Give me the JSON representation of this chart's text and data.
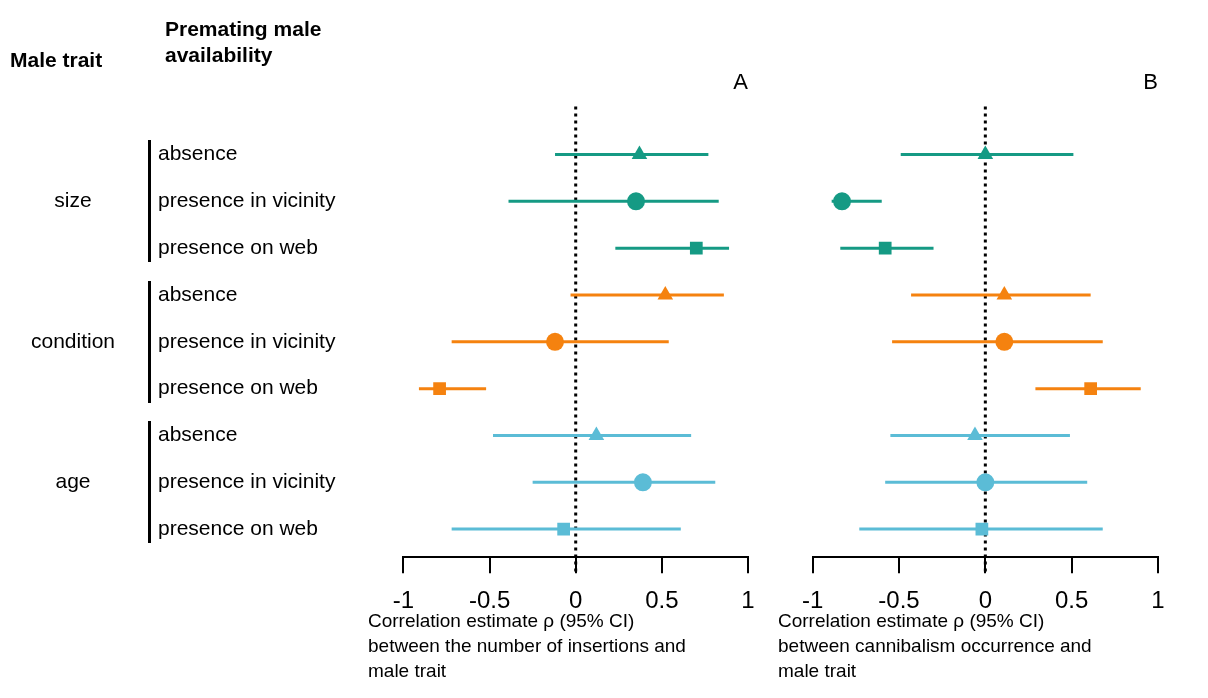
{
  "chart_data": [
    {
      "type": "scatter",
      "title": "A",
      "orientation": "horizontal",
      "ylabel": "Premating male availability",
      "xlabel": "Correlation estimate ρ (95% CI) between the number of insertions and male trait",
      "annotations": [
        "Male trait",
        "size",
        "condition",
        "age"
      ],
      "categories": [
        "absence",
        "presence in vicinity",
        "presence on web",
        "absence",
        "presence in vicinity",
        "presence on web",
        "absence",
        "presence in vicinity",
        "presence on web"
      ],
      "xlim": [
        -1,
        1
      ],
      "xticks": [
        -1,
        -0.5,
        0,
        0.5,
        1
      ],
      "ref_lines": [
        {
          "axis": "x",
          "value": 0,
          "color": "#000000",
          "line_style": "dotted"
        }
      ],
      "series": [
        {
          "marker": "triangle",
          "color": "#159a84",
          "values": [
            0.37,
            null,
            null,
            null,
            null,
            null,
            null,
            null,
            null
          ],
          "errors": [
            [
              -0.12,
              0.77
            ],
            null,
            null,
            null,
            null,
            null,
            null,
            null,
            null
          ]
        },
        {
          "marker": "circle",
          "color": "#159a84",
          "values": [
            null,
            0.35,
            null,
            null,
            null,
            null,
            null,
            null,
            null
          ],
          "errors": [
            null,
            [
              -0.39,
              0.83
            ],
            null,
            null,
            null,
            null,
            null,
            null,
            null
          ]
        },
        {
          "marker": "square",
          "color": "#159a84",
          "values": [
            null,
            null,
            0.7,
            null,
            null,
            null,
            null,
            null,
            null
          ],
          "errors": [
            null,
            null,
            [
              0.23,
              0.89
            ],
            null,
            null,
            null,
            null,
            null,
            null
          ]
        },
        {
          "marker": "triangle",
          "color": "#f5820f",
          "values": [
            null,
            null,
            null,
            0.52,
            null,
            null,
            null,
            null,
            null
          ],
          "errors": [
            null,
            null,
            null,
            [
              -0.03,
              0.86
            ],
            null,
            null,
            null,
            null,
            null
          ]
        },
        {
          "marker": "circle",
          "color": "#f5820f",
          "values": [
            null,
            null,
            null,
            null,
            -0.12,
            null,
            null,
            null,
            null
          ],
          "errors": [
            null,
            null,
            null,
            null,
            [
              -0.72,
              0.54
            ],
            null,
            null,
            null,
            null
          ]
        },
        {
          "marker": "square",
          "color": "#f5820f",
          "values": [
            null,
            null,
            null,
            null,
            null,
            -0.79,
            null,
            null,
            null
          ],
          "errors": [
            null,
            null,
            null,
            null,
            null,
            [
              -0.91,
              -0.52
            ],
            null,
            null,
            null
          ]
        },
        {
          "marker": "triangle",
          "color": "#5bbcd6",
          "values": [
            null,
            null,
            null,
            null,
            null,
            null,
            0.12,
            null,
            null
          ],
          "errors": [
            null,
            null,
            null,
            null,
            null,
            null,
            [
              -0.48,
              0.67
            ],
            null,
            null
          ]
        },
        {
          "marker": "circle",
          "color": "#5bbcd6",
          "values": [
            null,
            null,
            null,
            null,
            null,
            null,
            null,
            0.39,
            null
          ],
          "errors": [
            null,
            null,
            null,
            null,
            null,
            null,
            null,
            [
              -0.25,
              0.81
            ],
            null
          ]
        },
        {
          "marker": "square",
          "color": "#5bbcd6",
          "values": [
            null,
            null,
            null,
            null,
            null,
            null,
            null,
            null,
            -0.07
          ],
          "errors": [
            null,
            null,
            null,
            null,
            null,
            null,
            null,
            null,
            [
              -0.72,
              0.61
            ]
          ]
        }
      ]
    },
    {
      "type": "scatter",
      "title": "B",
      "orientation": "horizontal",
      "tick_labels": "x",
      "xlabel": "Correlation estimate ρ (95% CI) between cannibalism occurrence and male trait",
      "categories": [
        null,
        null,
        null,
        null,
        null,
        null,
        null,
        null,
        null
      ],
      "xlim": [
        -1,
        1
      ],
      "xticks": [
        -1,
        -0.5,
        0,
        0.5,
        1
      ],
      "ref_lines": [
        {
          "axis": "x",
          "value": 0,
          "color": "#000000",
          "line_style": "dotted"
        }
      ],
      "series": [
        {
          "marker": "triangle",
          "color": "#159a84",
          "values": [
            0.0,
            null,
            null,
            null,
            null,
            null,
            null,
            null,
            null
          ],
          "errors": [
            [
              -0.49,
              0.51
            ],
            null,
            null,
            null,
            null,
            null,
            null,
            null,
            null
          ]
        },
        {
          "marker": "circle",
          "color": "#159a84",
          "values": [
            null,
            -0.83,
            null,
            null,
            null,
            null,
            null,
            null,
            null
          ],
          "errors": [
            null,
            [
              -0.89,
              -0.6
            ],
            null,
            null,
            null,
            null,
            null,
            null,
            null
          ]
        },
        {
          "marker": "square",
          "color": "#159a84",
          "values": [
            null,
            null,
            -0.58,
            null,
            null,
            null,
            null,
            null,
            null
          ],
          "errors": [
            null,
            null,
            [
              -0.84,
              -0.3
            ],
            null,
            null,
            null,
            null,
            null,
            null
          ]
        },
        {
          "marker": "triangle",
          "color": "#f5820f",
          "values": [
            null,
            null,
            null,
            0.11,
            null,
            null,
            null,
            null,
            null
          ],
          "errors": [
            null,
            null,
            null,
            [
              -0.43,
              0.61
            ],
            null,
            null,
            null,
            null,
            null
          ]
        },
        {
          "marker": "circle",
          "color": "#f5820f",
          "values": [
            null,
            null,
            null,
            null,
            0.11,
            null,
            null,
            null,
            null
          ],
          "errors": [
            null,
            null,
            null,
            null,
            [
              -0.54,
              0.68
            ],
            null,
            null,
            null,
            null
          ]
        },
        {
          "marker": "square",
          "color": "#f5820f",
          "values": [
            null,
            null,
            null,
            null,
            null,
            0.61,
            null,
            null,
            null
          ],
          "errors": [
            null,
            null,
            null,
            null,
            null,
            [
              0.29,
              0.9
            ],
            null,
            null,
            null
          ]
        },
        {
          "marker": "triangle",
          "color": "#5bbcd6",
          "values": [
            null,
            null,
            null,
            null,
            null,
            null,
            -0.06,
            null,
            null
          ],
          "errors": [
            null,
            null,
            null,
            null,
            null,
            null,
            [
              -0.55,
              0.49
            ],
            null,
            null
          ]
        },
        {
          "marker": "circle",
          "color": "#5bbcd6",
          "values": [
            null,
            null,
            null,
            null,
            null,
            null,
            null,
            0.0,
            null
          ],
          "errors": [
            null,
            null,
            null,
            null,
            null,
            null,
            null,
            [
              -0.58,
              0.59
            ],
            null
          ]
        },
        {
          "marker": "square",
          "color": "#5bbcd6",
          "values": [
            null,
            null,
            null,
            null,
            null,
            null,
            null,
            null,
            -0.02
          ],
          "errors": [
            null,
            null,
            null,
            null,
            null,
            null,
            null,
            null,
            [
              -0.73,
              0.68
            ]
          ]
        }
      ]
    }
  ]
}
